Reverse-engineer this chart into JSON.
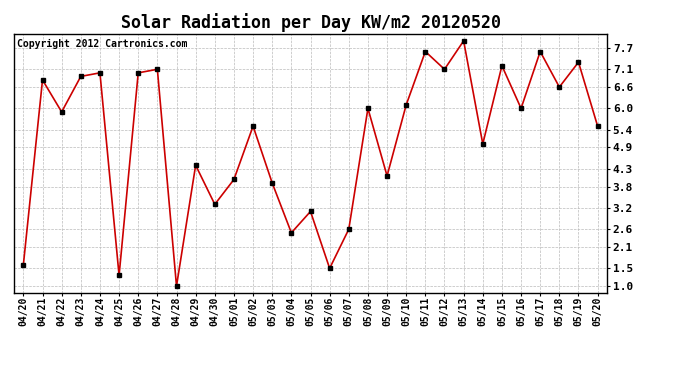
{
  "title": "Solar Radiation per Day KW/m2 20120520",
  "copyright": "Copyright 2012 Cartronics.com",
  "x_labels": [
    "04/20",
    "04/21",
    "04/22",
    "04/23",
    "04/24",
    "04/25",
    "04/26",
    "04/27",
    "04/28",
    "04/29",
    "04/30",
    "05/01",
    "05/02",
    "05/03",
    "05/04",
    "05/05",
    "05/06",
    "05/07",
    "05/08",
    "05/09",
    "05/10",
    "05/11",
    "05/12",
    "05/13",
    "05/14",
    "05/15",
    "05/16",
    "05/17",
    "05/18",
    "05/19",
    "05/20"
  ],
  "y_values": [
    1.6,
    6.8,
    5.9,
    6.9,
    7.0,
    1.3,
    7.0,
    7.1,
    1.0,
    4.4,
    3.3,
    4.0,
    5.5,
    3.9,
    2.5,
    3.1,
    1.5,
    2.6,
    6.0,
    4.1,
    6.1,
    7.6,
    7.1,
    7.9,
    5.0,
    7.2,
    6.0,
    7.6,
    6.6,
    7.3,
    5.5
  ],
  "y_ticks": [
    1.0,
    1.5,
    2.1,
    2.6,
    3.2,
    3.8,
    4.3,
    4.9,
    5.4,
    6.0,
    6.6,
    7.1,
    7.7
  ],
  "line_color": "#cc0000",
  "marker_color": "#000000",
  "bg_color": "#ffffff",
  "grid_color": "#bbbbbb",
  "title_fontsize": 12,
  "label_fontsize": 7,
  "copyright_fontsize": 7,
  "ylim_min": 0.82,
  "ylim_max": 8.1
}
